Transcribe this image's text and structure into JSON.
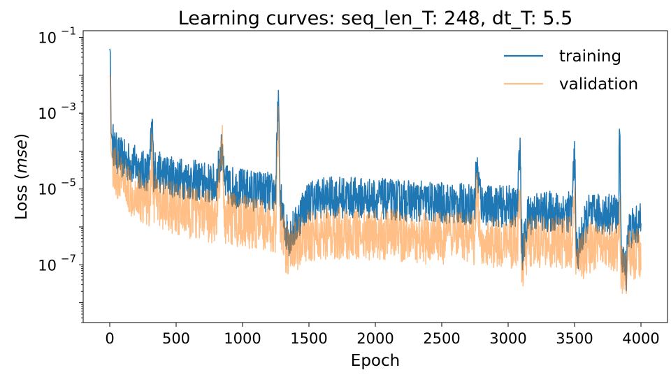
{
  "chart_data": {
    "type": "line",
    "title": "Learning curves: seq_len_T: 248, dt_T: 5.5",
    "xlabel": "Epoch",
    "ylabel_prefix": "Loss (",
    "ylabel_italic": "mse",
    "ylabel_suffix": ")",
    "yscale": "log",
    "xlim": [
      -200,
      4200
    ],
    "ylim": [
      3e-09,
      0.15
    ],
    "grid": false,
    "legend_position": "top-right",
    "x_ticks": [
      0,
      500,
      1000,
      1500,
      2000,
      2500,
      3000,
      3500,
      4000
    ],
    "x_tick_labels": [
      "0",
      "500",
      "1000",
      "1500",
      "2000",
      "2500",
      "3000",
      "3500",
      "4000"
    ],
    "y_ticks": [
      0.1,
      0.001,
      1e-05,
      1e-07
    ],
    "y_tick_labels": [
      {
        "base": "10",
        "exp": "−1"
      },
      {
        "base": "10",
        "exp": "−3"
      },
      {
        "base": "10",
        "exp": "−5"
      },
      {
        "base": "10",
        "exp": "−7"
      }
    ],
    "series": [
      {
        "name": "training",
        "color": "#1f77b4",
        "opacity": 1.0,
        "x": [
          0,
          5,
          10,
          20,
          40,
          60,
          100,
          150,
          200,
          250,
          300,
          320,
          330,
          350,
          400,
          500,
          600,
          700,
          800,
          850,
          860,
          900,
          1000,
          1100,
          1150,
          1200,
          1250,
          1270,
          1280,
          1300,
          1320,
          1350,
          1400,
          1450,
          1500,
          1600,
          1800,
          2000,
          2200,
          2400,
          2600,
          2750,
          2760,
          2800,
          2900,
          3000,
          3070,
          3090,
          3100,
          3110,
          3150,
          3200,
          3300,
          3400,
          3480,
          3500,
          3510,
          3520,
          3600,
          3700,
          3800,
          3830,
          3840,
          3850,
          3870,
          3890,
          3900,
          3950,
          4000
        ],
        "y": [
          0.05,
          0.04,
          0.0003,
          0.0002,
          0.0001,
          8e-05,
          6e-05,
          5e-05,
          4e-05,
          3e-05,
          3e-05,
          0.0007,
          3e-05,
          3e-05,
          2.5e-05,
          2e-05,
          1.8e-05,
          1.5e-05,
          1.3e-05,
          0.00015,
          1.3e-05,
          1.2e-05,
          1e-05,
          9e-06,
          9e-06,
          8e-06,
          8e-06,
          0.004,
          1e-05,
          2e-06,
          9e-07,
          6e-07,
          1e-06,
          3e-06,
          5e-06,
          6e-06,
          6e-06,
          5.5e-06,
          5e-06,
          4.5e-06,
          4e-06,
          4e-06,
          5e-05,
          4e-06,
          3.5e-06,
          3.5e-06,
          3.3e-06,
          0.00022,
          6e-07,
          2e-07,
          2e-06,
          2.5e-06,
          2.5e-06,
          2.5e-06,
          2.5e-06,
          0.00018,
          5e-07,
          2e-07,
          2e-06,
          2.2e-06,
          2.2e-06,
          2.2e-06,
          0.0003,
          3e-07,
          1e-07,
          7e-08,
          8e-07,
          1e-06,
          1.2e-06
        ]
      },
      {
        "name": "validation",
        "color": "#ff7f0e",
        "opacity": 0.5,
        "x": [
          0,
          5,
          10,
          20,
          40,
          60,
          100,
          150,
          200,
          250,
          300,
          320,
          330,
          350,
          400,
          500,
          600,
          700,
          800,
          850,
          860,
          900,
          1000,
          1100,
          1150,
          1200,
          1250,
          1270,
          1280,
          1300,
          1320,
          1350,
          1400,
          1450,
          1500,
          1600,
          1800,
          2000,
          2200,
          2400,
          2600,
          2750,
          2760,
          2800,
          2900,
          3000,
          3070,
          3090,
          3100,
          3110,
          3150,
          3200,
          3300,
          3400,
          3480,
          3500,
          3510,
          3520,
          3600,
          3700,
          3800,
          3830,
          3840,
          3850,
          3870,
          3890,
          3900,
          3950,
          4000
        ],
        "y": [
          0.01,
          0.009,
          0.0001,
          6e-05,
          3e-05,
          2e-05,
          1.5e-05,
          1e-05,
          8e-06,
          6e-06,
          5e-06,
          0.00012,
          5e-06,
          5e-06,
          4e-06,
          3e-06,
          2.5e-06,
          2e-06,
          1.8e-06,
          0.00012,
          1.8e-06,
          1.6e-06,
          1.4e-06,
          1.2e-06,
          1.1e-06,
          1e-06,
          1e-06,
          0.0015,
          2e-06,
          6e-07,
          3e-07,
          2e-07,
          3e-07,
          5e-07,
          6e-07,
          7e-07,
          7e-07,
          6e-07,
          6e-07,
          5e-07,
          5e-07,
          5e-07,
          1e-05,
          5e-07,
          4e-07,
          4e-07,
          4e-07,
          1e-05,
          2e-07,
          1e-07,
          4e-07,
          4e-07,
          4e-07,
          4e-07,
          4e-07,
          7e-06,
          2e-07,
          1e-07,
          3e-07,
          3e-07,
          3e-07,
          3e-07,
          5e-06,
          8e-08,
          5e-08,
          5e-08,
          2e-07,
          2e-07,
          2e-07
        ]
      }
    ]
  }
}
